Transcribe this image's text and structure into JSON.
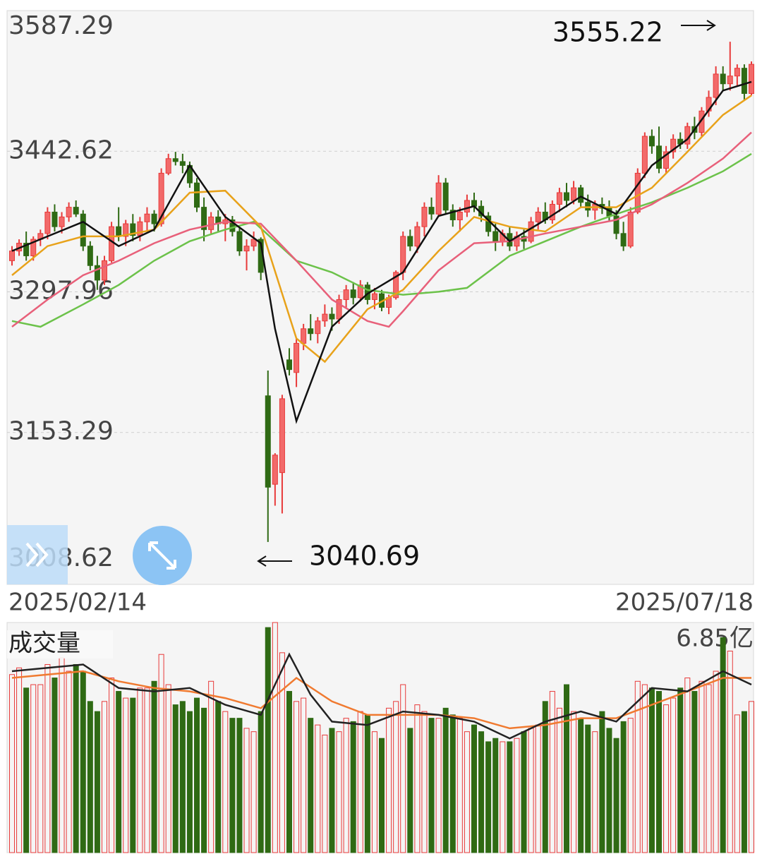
{
  "chart_data": {
    "type": "candlestick",
    "ylim": [
      3008.62,
      3587.29
    ],
    "yticks": [
      3008.62,
      3153.29,
      3297.96,
      3442.62,
      3587.29
    ],
    "x_labels": [
      "2025/02/14",
      "2025/07/18"
    ],
    "up_color": "#e83a3a",
    "down_color": "#2f6a14",
    "ohlc": [
      [
        3330,
        3345,
        3325,
        3340
      ],
      [
        3340,
        3352,
        3335,
        3348
      ],
      [
        3348,
        3360,
        3330,
        3335
      ],
      [
        3335,
        3355,
        3330,
        3352
      ],
      [
        3352,
        3362,
        3345,
        3358
      ],
      [
        3358,
        3385,
        3352,
        3380
      ],
      [
        3380,
        3388,
        3360,
        3365
      ],
      [
        3365,
        3380,
        3358,
        3375
      ],
      [
        3375,
        3390,
        3370,
        3385
      ],
      [
        3385,
        3392,
        3375,
        3378
      ],
      [
        3378,
        3382,
        3340,
        3345
      ],
      [
        3345,
        3350,
        3320,
        3325
      ],
      [
        3325,
        3335,
        3300,
        3310
      ],
      [
        3310,
        3335,
        3305,
        3330
      ],
      [
        3330,
        3370,
        3328,
        3365
      ],
      [
        3365,
        3385,
        3350,
        3355
      ],
      [
        3355,
        3372,
        3345,
        3368
      ],
      [
        3368,
        3378,
        3350,
        3356
      ],
      [
        3356,
        3375,
        3350,
        3370
      ],
      [
        3370,
        3385,
        3360,
        3378
      ],
      [
        3378,
        3382,
        3360,
        3368
      ],
      [
        3368,
        3425,
        3365,
        3420
      ],
      [
        3420,
        3440,
        3418,
        3435
      ],
      [
        3435,
        3442,
        3428,
        3432
      ],
      [
        3432,
        3440,
        3420,
        3428
      ],
      [
        3428,
        3432,
        3405,
        3410
      ],
      [
        3410,
        3415,
        3380,
        3385
      ],
      [
        3385,
        3395,
        3350,
        3362
      ],
      [
        3362,
        3380,
        3358,
        3375
      ],
      [
        3375,
        3382,
        3360,
        3368
      ],
      [
        3368,
        3378,
        3350,
        3372
      ],
      [
        3372,
        3376,
        3355,
        3360
      ],
      [
        3360,
        3365,
        3335,
        3340
      ],
      [
        3340,
        3352,
        3320,
        3345
      ],
      [
        3345,
        3360,
        3340,
        3352
      ],
      [
        3352,
        3354,
        3310,
        3318
      ],
      [
        3191,
        3217,
        3040.69,
        3097
      ],
      [
        3100,
        3132,
        3078,
        3130
      ],
      [
        3112,
        3192,
        3070,
        3188
      ],
      [
        3228,
        3240,
        3212,
        3218
      ],
      [
        3215,
        3250,
        3200,
        3245
      ],
      [
        3245,
        3265,
        3238,
        3260
      ],
      [
        3260,
        3275,
        3248,
        3255
      ],
      [
        3255,
        3272,
        3245,
        3268
      ],
      [
        3268,
        3285,
        3262,
        3275
      ],
      [
        3275,
        3282,
        3258,
        3270
      ],
      [
        3270,
        3295,
        3265,
        3290
      ],
      [
        3290,
        3305,
        3282,
        3300
      ],
      [
        3300,
        3308,
        3285,
        3292
      ],
      [
        3292,
        3310,
        3288,
        3305
      ],
      [
        3305,
        3308,
        3285,
        3290
      ],
      [
        3290,
        3302,
        3280,
        3296
      ],
      [
        3296,
        3300,
        3278,
        3282
      ],
      [
        3282,
        3295,
        3275,
        3292
      ],
      [
        3292,
        3320,
        3290,
        3318
      ],
      [
        3318,
        3360,
        3310,
        3355
      ],
      [
        3355,
        3362,
        3340,
        3345
      ],
      [
        3345,
        3370,
        3338,
        3365
      ],
      [
        3365,
        3390,
        3355,
        3385
      ],
      [
        3385,
        3395,
        3372,
        3378
      ],
      [
        3378,
        3418,
        3375,
        3410
      ],
      [
        3410,
        3415,
        3378,
        3382
      ],
      [
        3382,
        3388,
        3365,
        3372
      ],
      [
        3372,
        3385,
        3360,
        3380
      ],
      [
        3380,
        3398,
        3375,
        3392
      ],
      [
        3392,
        3400,
        3380,
        3386
      ],
      [
        3386,
        3392,
        3370,
        3376
      ],
      [
        3376,
        3380,
        3355,
        3360
      ],
      [
        3360,
        3368,
        3340,
        3350
      ],
      [
        3350,
        3362,
        3345,
        3358
      ],
      [
        3358,
        3365,
        3340,
        3345
      ],
      [
        3345,
        3360,
        3340,
        3355
      ],
      [
        3355,
        3362,
        3342,
        3350
      ],
      [
        3350,
        3375,
        3348,
        3370
      ],
      [
        3370,
        3385,
        3362,
        3380
      ],
      [
        3380,
        3390,
        3368,
        3372
      ],
      [
        3372,
        3392,
        3368,
        3388
      ],
      [
        3388,
        3405,
        3380,
        3400
      ],
      [
        3400,
        3410,
        3385,
        3392
      ],
      [
        3392,
        3412,
        3388,
        3405
      ],
      [
        3405,
        3408,
        3385,
        3390
      ],
      [
        3390,
        3398,
        3375,
        3382
      ],
      [
        3382,
        3392,
        3372,
        3388
      ],
      [
        3388,
        3395,
        3378,
        3384
      ],
      [
        3384,
        3392,
        3370,
        3376
      ],
      [
        3376,
        3382,
        3352,
        3358
      ],
      [
        3358,
        3370,
        3340,
        3345
      ],
      [
        3345,
        3385,
        3343,
        3380
      ],
      [
        3380,
        3425,
        3378,
        3420
      ],
      [
        3420,
        3462,
        3415,
        3458
      ],
      [
        3458,
        3465,
        3440,
        3448
      ],
      [
        3448,
        3468,
        3420,
        3425
      ],
      [
        3425,
        3448,
        3420,
        3442
      ],
      [
        3442,
        3460,
        3435,
        3455
      ],
      [
        3455,
        3462,
        3445,
        3450
      ],
      [
        3450,
        3472,
        3445,
        3468
      ],
      [
        3468,
        3478,
        3455,
        3462
      ],
      [
        3462,
        3488,
        3458,
        3484
      ],
      [
        3484,
        3505,
        3478,
        3498
      ],
      [
        3498,
        3530,
        3490,
        3522
      ],
      [
        3522,
        3530,
        3505,
        3512
      ],
      [
        3512,
        3555.22,
        3505,
        3520
      ],
      [
        3520,
        3532,
        3510,
        3528
      ],
      [
        3528,
        3532,
        3495,
        3502
      ],
      [
        3502,
        3535,
        3500,
        3532
      ]
    ],
    "series": [
      {
        "color": "#111111",
        "x": [
          0,
          5,
          10,
          15,
          20,
          25,
          30,
          35,
          37,
          40,
          45,
          50,
          55,
          60,
          65,
          70,
          75,
          80,
          85,
          90,
          95,
          100,
          104
        ],
        "values": [
          3340,
          3355,
          3370,
          3345,
          3362,
          3428,
          3375,
          3348,
          3260,
          3165,
          3262,
          3296,
          3318,
          3376,
          3386,
          3350,
          3372,
          3396,
          3378,
          3428,
          3455,
          3505,
          3514
        ]
      },
      {
        "color": "#e8a21a",
        "x": [
          0,
          5,
          10,
          15,
          20,
          25,
          30,
          35,
          40,
          44,
          50,
          55,
          60,
          65,
          70,
          75,
          80,
          85,
          90,
          95,
          100,
          104
        ],
        "values": [
          3315,
          3345,
          3355,
          3355,
          3362,
          3400,
          3402,
          3365,
          3250,
          3226,
          3280,
          3300,
          3340,
          3375,
          3365,
          3360,
          3385,
          3385,
          3405,
          3442,
          3480,
          3500
        ]
      },
      {
        "color": "#e8607a",
        "x": [
          0,
          5,
          10,
          15,
          20,
          25,
          30,
          35,
          40,
          45,
          50,
          53,
          55,
          60,
          65,
          70,
          75,
          80,
          85,
          90,
          95,
          100,
          104
        ],
        "values": [
          3262,
          3290,
          3315,
          3330,
          3348,
          3362,
          3370,
          3368,
          3330,
          3290,
          3268,
          3262,
          3278,
          3320,
          3348,
          3350,
          3358,
          3365,
          3372,
          3388,
          3410,
          3435,
          3462
        ]
      },
      {
        "color": "#6cc24a",
        "x": [
          0,
          4,
          10,
          15,
          20,
          25,
          30,
          34,
          40,
          45,
          50,
          55,
          60,
          64,
          70,
          75,
          80,
          85,
          90,
          95,
          100,
          104
        ],
        "values": [
          3268,
          3262,
          3285,
          3305,
          3330,
          3350,
          3362,
          3370,
          3330,
          3318,
          3300,
          3295,
          3298,
          3302,
          3335,
          3350,
          3365,
          3378,
          3390,
          3405,
          3422,
          3440
        ]
      }
    ],
    "annotations": [
      "3555.22",
      "3040.69"
    ],
    "volume_panel": {
      "label": "成交量",
      "ylim": [
        0,
        6.85
      ],
      "yticks": [
        {
          "value": 6.85,
          "label": "6.85亿"
        }
      ],
      "values": [
        5.3,
        5.5,
        4.9,
        5.0,
        5.0,
        5.6,
        5.2,
        5.8,
        5.4,
        5.6,
        5.4,
        4.5,
        4.2,
        4.5,
        5.2,
        4.8,
        4.6,
        4.6,
        4.9,
        4.9,
        5.1,
        5.9,
        5.0,
        4.4,
        4.5,
        4.2,
        4.6,
        4.3,
        5.1,
        4.5,
        4.2,
        4.0,
        4.0,
        3.7,
        3.6,
        4.2,
        6.7,
        6.85,
        5.95,
        4.8,
        4.5,
        4.6,
        4.0,
        3.8,
        3.5,
        3.7,
        3.6,
        4.0,
        3.9,
        4.2,
        4.1,
        3.6,
        3.4,
        4.3,
        4.5,
        5.0,
        3.7,
        4.4,
        4.2,
        4.0,
        4.0,
        4.3,
        4.1,
        4.0,
        3.6,
        3.8,
        3.6,
        3.3,
        3.4,
        3.3,
        3.3,
        3.4,
        3.6,
        3.7,
        3.8,
        4.5,
        4.8,
        4.3,
        5.0,
        4.2,
        4.0,
        3.8,
        3.6,
        4.2,
        3.7,
        3.4,
        3.9,
        4.0,
        5.1,
        5.0,
        4.9,
        4.8,
        4.4,
        4.6,
        4.9,
        5.2,
        4.8,
        5.1,
        5.0,
        5.4,
        6.4,
        6.0,
        4.1,
        4.2,
        4.5
      ],
      "series": [
        {
          "color": "#222222",
          "x": [
            0,
            5,
            10,
            15,
            20,
            25,
            30,
            35,
            37,
            39,
            42,
            45,
            50,
            55,
            60,
            65,
            70,
            75,
            80,
            85,
            90,
            95,
            100,
            104
          ],
          "values": [
            5.4,
            5.5,
            5.6,
            4.9,
            4.8,
            4.9,
            4.4,
            4.1,
            5.0,
            5.9,
            4.7,
            3.9,
            3.8,
            4.2,
            4.1,
            3.9,
            3.4,
            3.9,
            4.2,
            3.9,
            4.9,
            4.8,
            5.4,
            5.0
          ]
        },
        {
          "color": "#f07a30",
          "x": [
            0,
            5,
            10,
            15,
            20,
            25,
            30,
            35,
            40,
            45,
            50,
            55,
            60,
            65,
            70,
            75,
            80,
            85,
            90,
            95,
            100,
            104
          ],
          "values": [
            5.2,
            5.3,
            5.4,
            5.1,
            4.9,
            4.8,
            4.6,
            4.3,
            5.2,
            4.5,
            4.1,
            4.1,
            4.1,
            4.0,
            3.7,
            3.8,
            4.0,
            4.0,
            4.4,
            4.8,
            5.2,
            5.2
          ]
        }
      ]
    }
  }
}
